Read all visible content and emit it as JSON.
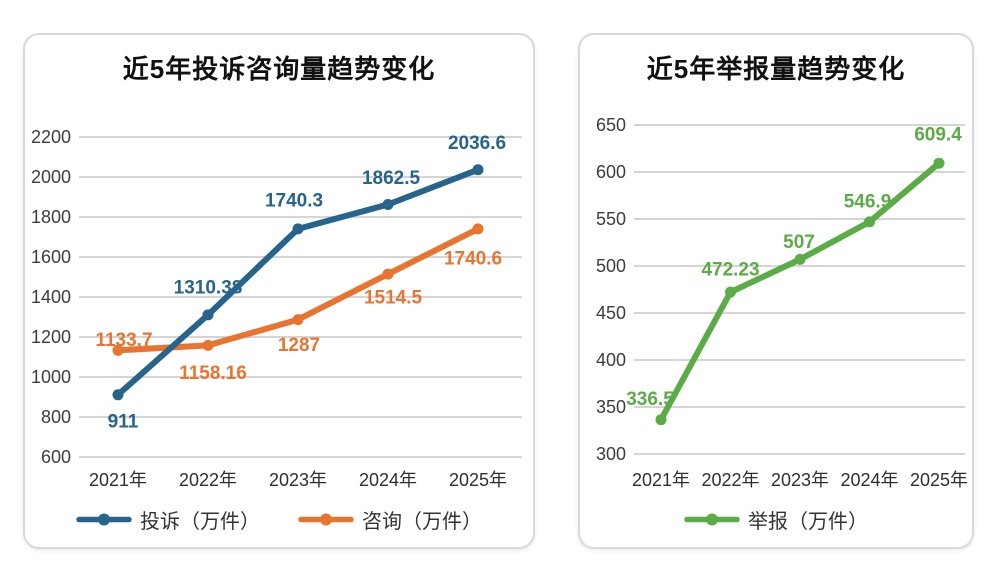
{
  "page": {
    "background": "#ffffff",
    "grid_color": "#d5d5d5",
    "tick_color": "#3d3d3d",
    "category_color": "#2f2f2f",
    "legend_text_color": "#333333",
    "title_color": "#111111"
  },
  "chart_data": [
    {
      "type": "line",
      "title": "近5年投诉咨询量趋势变化",
      "categories": [
        "2021年",
        "2022年",
        "2023年",
        "2024年",
        "2025年"
      ],
      "ylim": [
        600,
        2200
      ],
      "yticks": [
        2200,
        2000,
        1800,
        1600,
        1400,
        1200,
        1000,
        800,
        600
      ],
      "grid": true,
      "legend_position": "bottom",
      "series": [
        {
          "name": "咨询（万件）",
          "color": "#E8742F",
          "values": [
            1133.7,
            1158.16,
            1287,
            1514.5,
            1740.6
          ],
          "data_labels": [
            "1133.7",
            "1158.16",
            "1287",
            "1514.5",
            "1740.6"
          ],
          "label_offsets": [
            [
              6,
              -10
            ],
            [
              5,
              28
            ],
            [
              1,
              26
            ],
            [
              5,
              24
            ],
            [
              -5,
              30
            ]
          ],
          "z": 1
        },
        {
          "name": "投诉（万件）",
          "color": "#26648C",
          "values": [
            911,
            1310.38,
            1740.3,
            1862.5,
            2036.6
          ],
          "data_labels": [
            "911",
            "1310.38",
            "1740.3",
            "1862.5",
            "2036.6"
          ],
          "label_offsets": [
            [
              5,
              27
            ],
            [
              0,
              -27
            ],
            [
              -4,
              -28
            ],
            [
              3,
              -26
            ],
            [
              -1,
              -26
            ]
          ],
          "z": 2
        }
      ],
      "legend_order": [
        1,
        0
      ]
    },
    {
      "type": "line",
      "title": "近5年举报量趋势变化",
      "categories": [
        "2021年",
        "2022年",
        "2023年",
        "2024年",
        "2025年"
      ],
      "ylim": [
        300,
        650
      ],
      "yticks": [
        650,
        600,
        550,
        500,
        450,
        400,
        350,
        300
      ],
      "grid": true,
      "legend_position": "bottom",
      "series": [
        {
          "name": "举报（万件）",
          "color": "#5BAB47",
          "values": [
            336.5,
            472.23,
            507,
            546.9,
            609.4
          ],
          "data_labels": [
            "336.5",
            "472.23",
            "507",
            "546.9",
            "609.4"
          ],
          "label_offsets": [
            [
              -11,
              -20
            ],
            [
              0,
              -22
            ],
            [
              -1,
              -17
            ],
            [
              -2,
              -20
            ],
            [
              -1,
              -28
            ]
          ],
          "z": 1
        }
      ],
      "legend_order": [
        0
      ]
    }
  ]
}
